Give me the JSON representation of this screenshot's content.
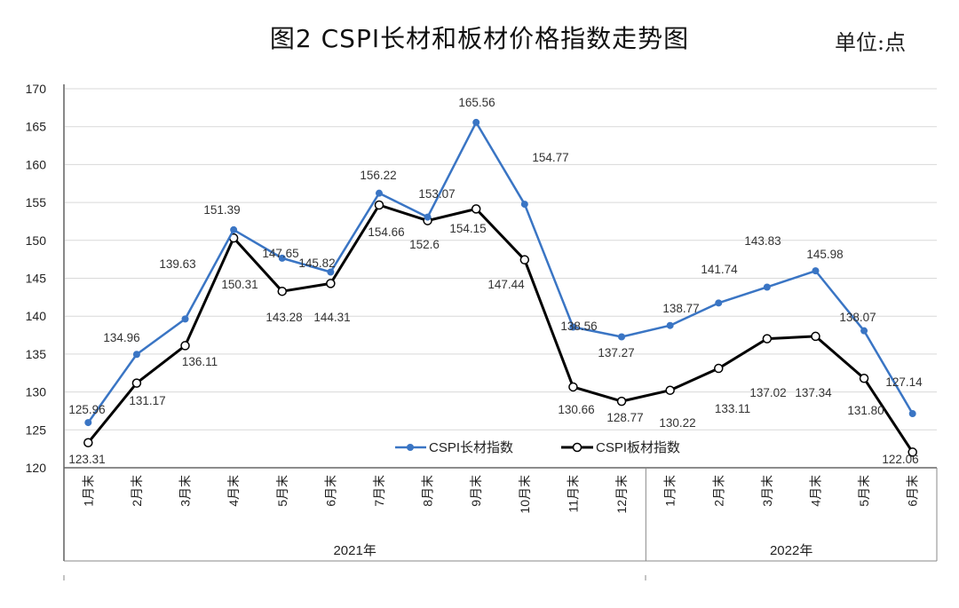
{
  "chart_data": {
    "type": "line",
    "title": "图2  CSPI长材和板材价格指数走势图",
    "unit": "单位:点",
    "categories": [
      "1月末",
      "2月末",
      "3月末",
      "4月末",
      "5月末",
      "6月末",
      "7月末",
      "8月末",
      "9月末",
      "10月末",
      "11月末",
      "12月末",
      "1月末",
      "2月末",
      "3月末",
      "4月末",
      "5月末",
      "6月末"
    ],
    "year_groups": [
      {
        "label": "2021年",
        "count": 12
      },
      {
        "label": "2022年",
        "count": 6
      }
    ],
    "ylim": [
      120,
      170
    ],
    "yticks": [
      "120",
      "125",
      "130",
      "135",
      "140",
      "145",
      "150",
      "155",
      "160",
      "165",
      "170"
    ],
    "grid": true,
    "legend_position": "bottom-center",
    "series": [
      {
        "name": "CSPI长材指数",
        "color": "#3a75c4",
        "values": [
          125.96,
          134.96,
          139.63,
          151.39,
          147.65,
          145.82,
          156.22,
          153.07,
          165.56,
          154.77,
          138.56,
          137.27,
          138.77,
          141.74,
          143.83,
          145.98,
          138.07,
          127.14
        ],
        "labels": [
          "125.96",
          "134.96",
          "139.63",
          "151.39",
          "147.65",
          "145.82",
          "156.22",
          "153.07",
          "165.56",
          "154.77",
          "138.56",
          "137.27",
          "138.77",
          "141.74",
          "143.83",
          "145.98",
          "138.07",
          "127.14"
        ]
      },
      {
        "name": "CSPI板材指数",
        "color": "#000000",
        "values": [
          123.31,
          131.17,
          136.11,
          150.31,
          143.28,
          144.31,
          154.66,
          152.6,
          154.15,
          147.44,
          130.66,
          128.77,
          130.22,
          133.11,
          137.02,
          137.34,
          131.8,
          122.06
        ],
        "labels": [
          "123.31",
          "131.17",
          "136.11",
          "150.31",
          "143.28",
          "144.31",
          "154.66",
          "152.6",
          "154.15",
          "147.44",
          "130.66",
          "128.77",
          "130.22",
          "133.11",
          "137.02",
          "137.34",
          "131.80",
          "122.06"
        ]
      }
    ]
  }
}
